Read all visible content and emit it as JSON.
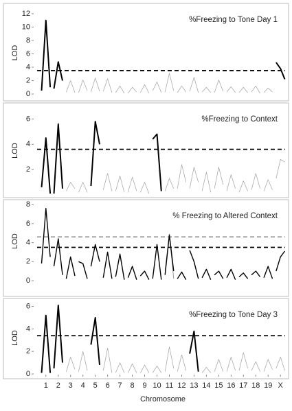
{
  "chart_data": [
    {
      "type": "line",
      "title": "%Freezing to Tone Day 1",
      "y_label": "LOD",
      "x": [
        0.65,
        1,
        1.35,
        1.5,
        1.65,
        2,
        2.35,
        2.5,
        2.65,
        3,
        3.35,
        3.5,
        3.65,
        4,
        4.35,
        4.5,
        4.65,
        5,
        5.35,
        5.5,
        5.65,
        6,
        6.35,
        6.5,
        6.65,
        7,
        7.35,
        7.5,
        7.65,
        8,
        8.35,
        8.5,
        8.65,
        9,
        9.35,
        9.5,
        9.65,
        10,
        10.35,
        10.5,
        10.65,
        11,
        11.35,
        11.5,
        11.65,
        12,
        12.35,
        12.5,
        12.65,
        13,
        13.35,
        13.5,
        13.65,
        14,
        14.35,
        14.5,
        14.65,
        15,
        15.35,
        15.5,
        15.65,
        16,
        16.35,
        16.5,
        16.65,
        17,
        17.35,
        17.5,
        17.65,
        18,
        18.35,
        18.5,
        18.65,
        19,
        19.35,
        19.5,
        19.65,
        20,
        20.35,
        20.5
      ],
      "xlim": [
        0.4,
        20.6
      ],
      "ylim": [
        0,
        12.3
      ],
      "yticks": [
        0,
        2,
        4,
        6,
        8,
        10,
        12
      ],
      "thresholds": [
        {
          "value": 3.5,
          "color": "#000000"
        }
      ],
      "series": [
        {
          "color": "#000000",
          "width": 2,
          "values": [
            0.5,
            11,
            1,
            null,
            0.8,
            4.8,
            2,
            null,
            null,
            null,
            null,
            null,
            null,
            null,
            null,
            null,
            null,
            null,
            null,
            null,
            null,
            null,
            null,
            null,
            null,
            null,
            null,
            null,
            null,
            null,
            null,
            null,
            null,
            null,
            null,
            null,
            null,
            null,
            null,
            null,
            null,
            null,
            null,
            null,
            null,
            null,
            null,
            null,
            null,
            null,
            null,
            null,
            null,
            null,
            null,
            null,
            null,
            null,
            null,
            null,
            null,
            null,
            null,
            null,
            null,
            null,
            null,
            null,
            null,
            null,
            null,
            null,
            null,
            null,
            null,
            null,
            4.7,
            3.8,
            2.2,
            null
          ]
        },
        {
          "color": "#aaaaaa",
          "width": 0.8,
          "values": [
            null,
            null,
            null,
            null,
            null,
            null,
            null,
            null,
            0.3,
            2,
            0.2,
            null,
            0.2,
            2.1,
            0.5,
            null,
            0.3,
            2.4,
            0.4,
            null,
            0.4,
            2.3,
            0.2,
            null,
            0.2,
            1.2,
            0.1,
            null,
            0.1,
            1,
            0.3,
            null,
            0.2,
            1.4,
            0.1,
            null,
            0.5,
            1.8,
            0.2,
            null,
            0.3,
            3.1,
            0.5,
            null,
            0.2,
            1.2,
            0.3,
            null,
            0.4,
            2.5,
            0.2,
            null,
            0.3,
            1,
            0.2,
            null,
            0.2,
            2.1,
            0.4,
            null,
            0.3,
            1.1,
            0.2,
            null,
            0.2,
            1,
            0.2,
            null,
            0.3,
            1.2,
            0.1,
            null,
            0.2,
            0.9,
            0.3,
            null,
            null,
            null,
            null,
            null
          ]
        }
      ]
    },
    {
      "type": "line",
      "title": "%Freezing to Context",
      "y_label": "LOD",
      "x": [
        0.65,
        1,
        1.35,
        1.5,
        1.65,
        2,
        2.35,
        2.5,
        2.65,
        3,
        3.35,
        3.5,
        3.65,
        4,
        4.35,
        4.5,
        4.65,
        5,
        5.35,
        5.5,
        5.65,
        6,
        6.35,
        6.5,
        6.65,
        7,
        7.35,
        7.5,
        7.65,
        8,
        8.35,
        8.5,
        8.65,
        9,
        9.35,
        9.5,
        9.65,
        10,
        10.35,
        10.5,
        10.65,
        11,
        11.35,
        11.5,
        11.65,
        12,
        12.35,
        12.5,
        12.65,
        13,
        13.35,
        13.5,
        13.65,
        14,
        14.35,
        14.5,
        14.65,
        15,
        15.35,
        15.5,
        15.65,
        16,
        16.35,
        16.5,
        16.65,
        17,
        17.35,
        17.5,
        17.65,
        18,
        18.35,
        18.5,
        18.65,
        19,
        19.35,
        19.5,
        19.65,
        20,
        20.35,
        20.5
      ],
      "xlim": [
        0.4,
        20.6
      ],
      "ylim": [
        0,
        7
      ],
      "yticks": [
        2,
        4,
        6
      ],
      "thresholds": [
        {
          "value": 3.6,
          "color": "#000000"
        }
      ],
      "series": [
        {
          "color": "#000000",
          "width": 2,
          "values": [
            0.6,
            4.5,
            0.1,
            null,
            0.1,
            5.6,
            0.5,
            null,
            null,
            null,
            null,
            null,
            null,
            null,
            null,
            null,
            0.7,
            5.8,
            4,
            null,
            null,
            null,
            null,
            null,
            null,
            null,
            null,
            null,
            null,
            null,
            null,
            null,
            null,
            null,
            null,
            null,
            4.4,
            4.8,
            0.3,
            null,
            null,
            null,
            null,
            null,
            null,
            null,
            null,
            null,
            null,
            null,
            null,
            null,
            null,
            null,
            null,
            null,
            null,
            null,
            null,
            null,
            null,
            null,
            null,
            null,
            null,
            null,
            null,
            null,
            null,
            null,
            null,
            null,
            null,
            null,
            null,
            null,
            null,
            null,
            null,
            null
          ]
        },
        {
          "color": "#aaaaaa",
          "width": 0.8,
          "values": [
            null,
            null,
            null,
            null,
            null,
            null,
            null,
            null,
            0.3,
            1,
            0.5,
            null,
            0.2,
            1,
            0.2,
            null,
            null,
            null,
            null,
            null,
            0.4,
            1.7,
            0.3,
            null,
            0.3,
            1.5,
            0.2,
            null,
            0.2,
            1.4,
            0.3,
            null,
            0.2,
            1,
            0.1,
            null,
            null,
            null,
            null,
            null,
            0.3,
            1.3,
            0.5,
            null,
            0.5,
            2.4,
            1,
            null,
            0.5,
            2.2,
            1,
            null,
            0.3,
            1.8,
            0.2,
            null,
            0.5,
            2.2,
            0.8,
            null,
            0.3,
            1.6,
            0.5,
            null,
            0.2,
            1.1,
            0.3,
            null,
            0.4,
            1.7,
            0.5,
            null,
            0.3,
            1.2,
            0.4,
            null,
            1.3,
            2.8,
            2.6,
            null
          ]
        }
      ]
    },
    {
      "type": "line",
      "title": "% Freezing to Altered Context",
      "y_label": "LOD",
      "x": [
        0.65,
        1,
        1.35,
        1.5,
        1.65,
        2,
        2.35,
        2.5,
        2.65,
        3,
        3.35,
        3.5,
        3.65,
        4,
        4.35,
        4.5,
        4.65,
        5,
        5.35,
        5.5,
        5.65,
        6,
        6.35,
        6.5,
        6.65,
        7,
        7.35,
        7.5,
        7.65,
        8,
        8.35,
        8.5,
        8.65,
        9,
        9.35,
        9.5,
        9.65,
        10,
        10.35,
        10.5,
        10.65,
        11,
        11.35,
        11.5,
        11.65,
        12,
        12.35,
        12.5,
        12.65,
        13,
        13.35,
        13.5,
        13.65,
        14,
        14.35,
        14.5,
        14.65,
        15,
        15.35,
        15.5,
        15.65,
        16,
        16.35,
        16.5,
        16.65,
        17,
        17.35,
        17.5,
        17.65,
        18,
        18.35,
        18.5,
        18.65,
        19,
        19.35,
        19.5,
        19.65,
        20,
        20.35,
        20.5
      ],
      "xlim": [
        0.4,
        20.6
      ],
      "ylim": [
        0,
        8.3
      ],
      "yticks": [
        0,
        2,
        4,
        6,
        8
      ],
      "thresholds": [
        {
          "value": 4.6,
          "color": "#999999"
        },
        {
          "value": 3.5,
          "color": "#000000"
        }
      ],
      "series": [
        {
          "color": "#000000",
          "width": 1.4,
          "values": [
            1.8,
            7.6,
            2.5,
            null,
            1.5,
            4.4,
            0.6,
            null,
            0.2,
            2.5,
            0.5,
            null,
            2,
            1.8,
            0.2,
            null,
            1.5,
            3.8,
            2,
            null,
            0.3,
            3,
            0.2,
            null,
            0.4,
            2.8,
            0.1,
            null,
            0.3,
            1.5,
            0.1,
            null,
            0.5,
            1,
            0.1,
            null,
            0.2,
            3.8,
            0.1,
            null,
            0.6,
            4.8,
            1,
            null,
            0.2,
            0.9,
            0.1,
            null,
            3.2,
            2,
            0.2,
            null,
            0.3,
            1.2,
            0.1,
            null,
            0.6,
            1,
            0.2,
            null,
            0.3,
            1.2,
            0.1,
            null,
            0.4,
            0.8,
            0.2,
            null,
            0.6,
            1,
            0.4,
            null,
            0.3,
            1.5,
            0.2,
            null,
            1,
            2.5,
            3.1,
            null
          ]
        },
        {
          "color": "#999999",
          "width": 1,
          "values": [
            null,
            null,
            null,
            null,
            null,
            null,
            null,
            null,
            null,
            null,
            null,
            null,
            null,
            null,
            null,
            null,
            null,
            null,
            null,
            null,
            null,
            null,
            null,
            null,
            null,
            null,
            null,
            null,
            null,
            null,
            null,
            null,
            null,
            null,
            null,
            null,
            null,
            null,
            null,
            null,
            1,
            4.9,
            0.2,
            null,
            null,
            null,
            null,
            null,
            null,
            null,
            null,
            null,
            null,
            null,
            null,
            null,
            null,
            null,
            null,
            null,
            null,
            null,
            null,
            null,
            null,
            null,
            null,
            null,
            null,
            null,
            null,
            null,
            null,
            null,
            null,
            null,
            null,
            null,
            null,
            null
          ]
        }
      ]
    },
    {
      "type": "line",
      "title": "%Freezing to Tone Day 3",
      "y_label": "LOD",
      "x_label": "Chromosome",
      "x": [
        0.65,
        1,
        1.35,
        1.5,
        1.65,
        2,
        2.35,
        2.5,
        2.65,
        3,
        3.35,
        3.5,
        3.65,
        4,
        4.35,
        4.5,
        4.65,
        5,
        5.35,
        5.5,
        5.65,
        6,
        6.35,
        6.5,
        6.65,
        7,
        7.35,
        7.5,
        7.65,
        8,
        8.35,
        8.5,
        8.65,
        9,
        9.35,
        9.5,
        9.65,
        10,
        10.35,
        10.5,
        10.65,
        11,
        11.35,
        11.5,
        11.65,
        12,
        12.35,
        12.5,
        12.65,
        13,
        13.35,
        13.5,
        13.65,
        14,
        14.35,
        14.5,
        14.65,
        15,
        15.35,
        15.5,
        15.65,
        16,
        16.35,
        16.5,
        16.65,
        17,
        17.35,
        17.5,
        17.65,
        18,
        18.35,
        18.5,
        18.65,
        19,
        19.35,
        19.5,
        19.65,
        20,
        20.35,
        20.5
      ],
      "xlim": [
        0.4,
        20.6
      ],
      "ylim": [
        0,
        6.4
      ],
      "yticks": [
        0,
        2,
        4,
        6
      ],
      "xticks": [
        1,
        2,
        3,
        4,
        5,
        6,
        7,
        8,
        9,
        10,
        11,
        12,
        13,
        14,
        15,
        16,
        17,
        18,
        19,
        {
          "value": 20,
          "label": "X"
        }
      ],
      "thresholds": [
        {
          "value": 3.4,
          "color": "#000000"
        }
      ],
      "series": [
        {
          "color": "#000000",
          "width": 2,
          "values": [
            0.1,
            5.2,
            0.1,
            null,
            0.5,
            6.1,
            1,
            null,
            null,
            null,
            null,
            null,
            null,
            null,
            null,
            null,
            2.6,
            5,
            0.8,
            null,
            null,
            null,
            null,
            null,
            null,
            null,
            null,
            null,
            null,
            null,
            null,
            null,
            null,
            null,
            null,
            null,
            null,
            null,
            null,
            null,
            null,
            null,
            null,
            null,
            null,
            null,
            null,
            null,
            1.8,
            3.8,
            0.2,
            null,
            null,
            null,
            null,
            null,
            null,
            null,
            null,
            null,
            null,
            null,
            null,
            null,
            null,
            null,
            null,
            null,
            null,
            null,
            null,
            null,
            null,
            null,
            null,
            null,
            null,
            null,
            null,
            null
          ]
        },
        {
          "color": "#aaaaaa",
          "width": 0.8,
          "values": [
            null,
            null,
            null,
            null,
            null,
            null,
            null,
            null,
            0.2,
            1.5,
            0.4,
            null,
            0.2,
            2,
            0.3,
            null,
            null,
            null,
            null,
            null,
            0.3,
            2.3,
            0.1,
            null,
            0.1,
            1,
            0.1,
            null,
            0.1,
            0.9,
            0.1,
            null,
            0.1,
            0.8,
            0.1,
            null,
            0.1,
            0.7,
            0.1,
            null,
            0.2,
            2.4,
            0.5,
            null,
            0.2,
            1.7,
            0.3,
            null,
            null,
            null,
            null,
            null,
            0.1,
            0.6,
            0.1,
            null,
            0.2,
            1.3,
            0.2,
            null,
            0.2,
            1.5,
            0.3,
            null,
            0.3,
            1.9,
            0.5,
            null,
            0.3,
            1.1,
            0.2,
            null,
            0.2,
            1.3,
            0.4,
            null,
            0.5,
            1.5,
            0.3,
            null
          ]
        }
      ]
    }
  ]
}
